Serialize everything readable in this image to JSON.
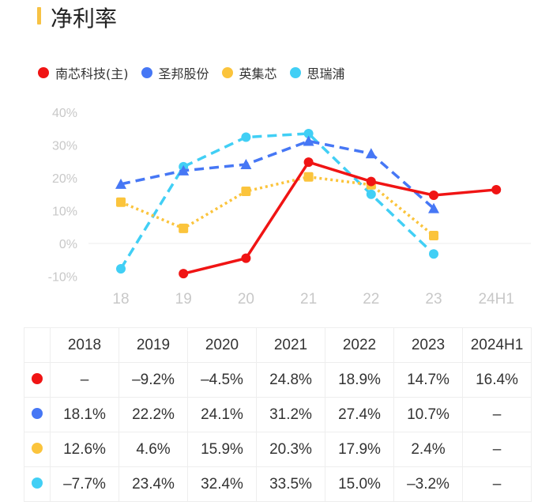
{
  "title": "净利率",
  "chart_data": {
    "type": "line",
    "title": "净利率",
    "categories": [
      "18",
      "19",
      "20",
      "21",
      "22",
      "23",
      "24H1"
    ],
    "yticks": [
      "40%",
      "30%",
      "20%",
      "10%",
      "0%",
      "-10%"
    ],
    "ylim": [
      -10,
      40
    ],
    "grid": false,
    "legend_placement": "top-left",
    "series": [
      {
        "name": "南芯科技(主)",
        "color": "#f01414",
        "style": "solid",
        "marker": "circle",
        "values": [
          null,
          -9.2,
          -4.5,
          24.8,
          18.9,
          14.7,
          16.4
        ]
      },
      {
        "name": "圣邦股份",
        "color": "#4677f5",
        "style": "dashed",
        "marker": "triangle",
        "values": [
          18.1,
          22.2,
          24.1,
          31.2,
          27.4,
          10.7,
          null
        ]
      },
      {
        "name": "英集芯",
        "color": "#fbc43c",
        "style": "dotted",
        "marker": "square",
        "values": [
          12.6,
          4.6,
          15.9,
          20.3,
          17.9,
          2.4,
          null
        ]
      },
      {
        "name": "思瑞浦",
        "color": "#41cff5",
        "style": "dashed",
        "marker": "circle",
        "values": [
          -7.7,
          23.4,
          32.4,
          33.5,
          15.0,
          -3.2,
          null
        ]
      }
    ]
  },
  "table": {
    "headers": [
      "2018",
      "2019",
      "2020",
      "2021",
      "2022",
      "2023",
      "2024H1"
    ],
    "rows": [
      [
        "–",
        "–9.2%",
        "–4.5%",
        "24.8%",
        "18.9%",
        "14.7%",
        "16.4%"
      ],
      [
        "18.1%",
        "22.2%",
        "24.1%",
        "31.2%",
        "27.4%",
        "10.7%",
        "–"
      ],
      [
        "12.6%",
        "4.6%",
        "15.9%",
        "20.3%",
        "17.9%",
        "2.4%",
        "–"
      ],
      [
        "–7.7%",
        "23.4%",
        "32.4%",
        "33.5%",
        "15.0%",
        "–3.2%",
        "–"
      ]
    ]
  }
}
